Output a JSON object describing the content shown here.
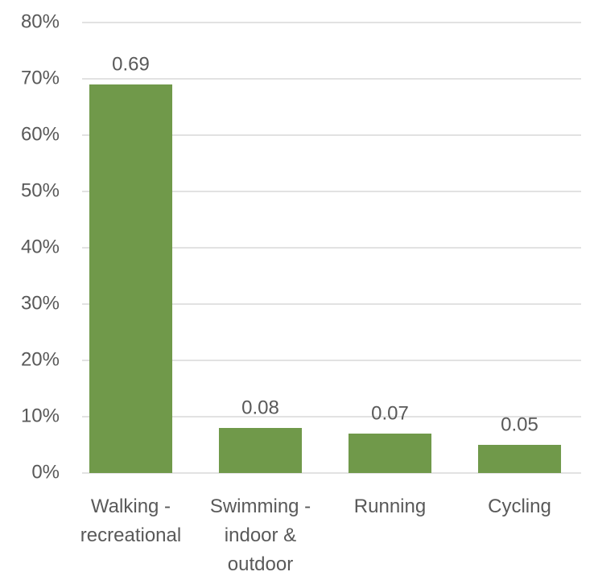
{
  "chart_data": {
    "type": "bar",
    "categories": [
      "Walking - recreational",
      "Swimming - indoor & outdoor",
      "Running",
      "Cycling"
    ],
    "values": [
      0.69,
      0.08,
      0.07,
      0.05
    ],
    "color": "#70994a",
    "ylim": [
      0,
      0.8
    ],
    "yticks": [
      {
        "value": 0,
        "label": "0%"
      },
      {
        "value": 0.1,
        "label": "10%"
      },
      {
        "value": 0.2,
        "label": "20%"
      },
      {
        "value": 0.3,
        "label": "30%"
      },
      {
        "value": 0.4,
        "label": "40%"
      },
      {
        "value": 0.5,
        "label": "50%"
      },
      {
        "value": 0.6,
        "label": "60%"
      },
      {
        "value": 0.7,
        "label": "70%"
      },
      {
        "value": 0.8,
        "label": "80%"
      }
    ],
    "grid": true
  }
}
